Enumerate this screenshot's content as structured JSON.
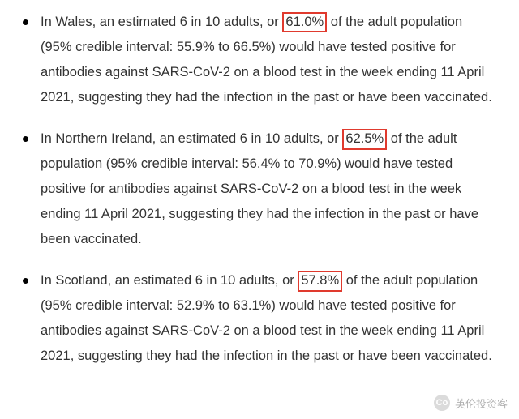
{
  "bullets": [
    {
      "text_before": "In Wales, an estimated 6 in 10 adults, or ",
      "highlighted": "61.0%",
      "text_after": " of the adult population (95% credible interval: 55.9% to 66.5%) would have tested positive for antibodies against SARS-CoV-2 on a blood test in the week ending 11 April 2021, suggesting they had the infection in the past or have been vaccinated."
    },
    {
      "text_before": "In Northern Ireland, an estimated 6 in 10 adults, or ",
      "highlighted": "62.5%",
      "text_after": " of the adult population (95% credible interval: 56.4% to 70.9%) would have tested positive for antibodies against SARS-CoV-2 on a blood test in the week ending 11 April 2021, suggesting they had the infection in the past or have been vaccinated."
    },
    {
      "text_before": "In Scotland, an estimated 6 in 10 adults, or ",
      "highlighted": "57.8%",
      "text_after": " of the adult population (95% credible interval: 52.9% to 63.1%) would have tested positive for antibodies against SARS-CoV-2 on a blood test in the week ending 11 April 2021, suggesting they had the infection in the past or have been vaccinated."
    }
  ],
  "highlight_border_color": "#e03a2e",
  "watermark_text": "英伦投资客",
  "watermark_icon_text": "Co"
}
